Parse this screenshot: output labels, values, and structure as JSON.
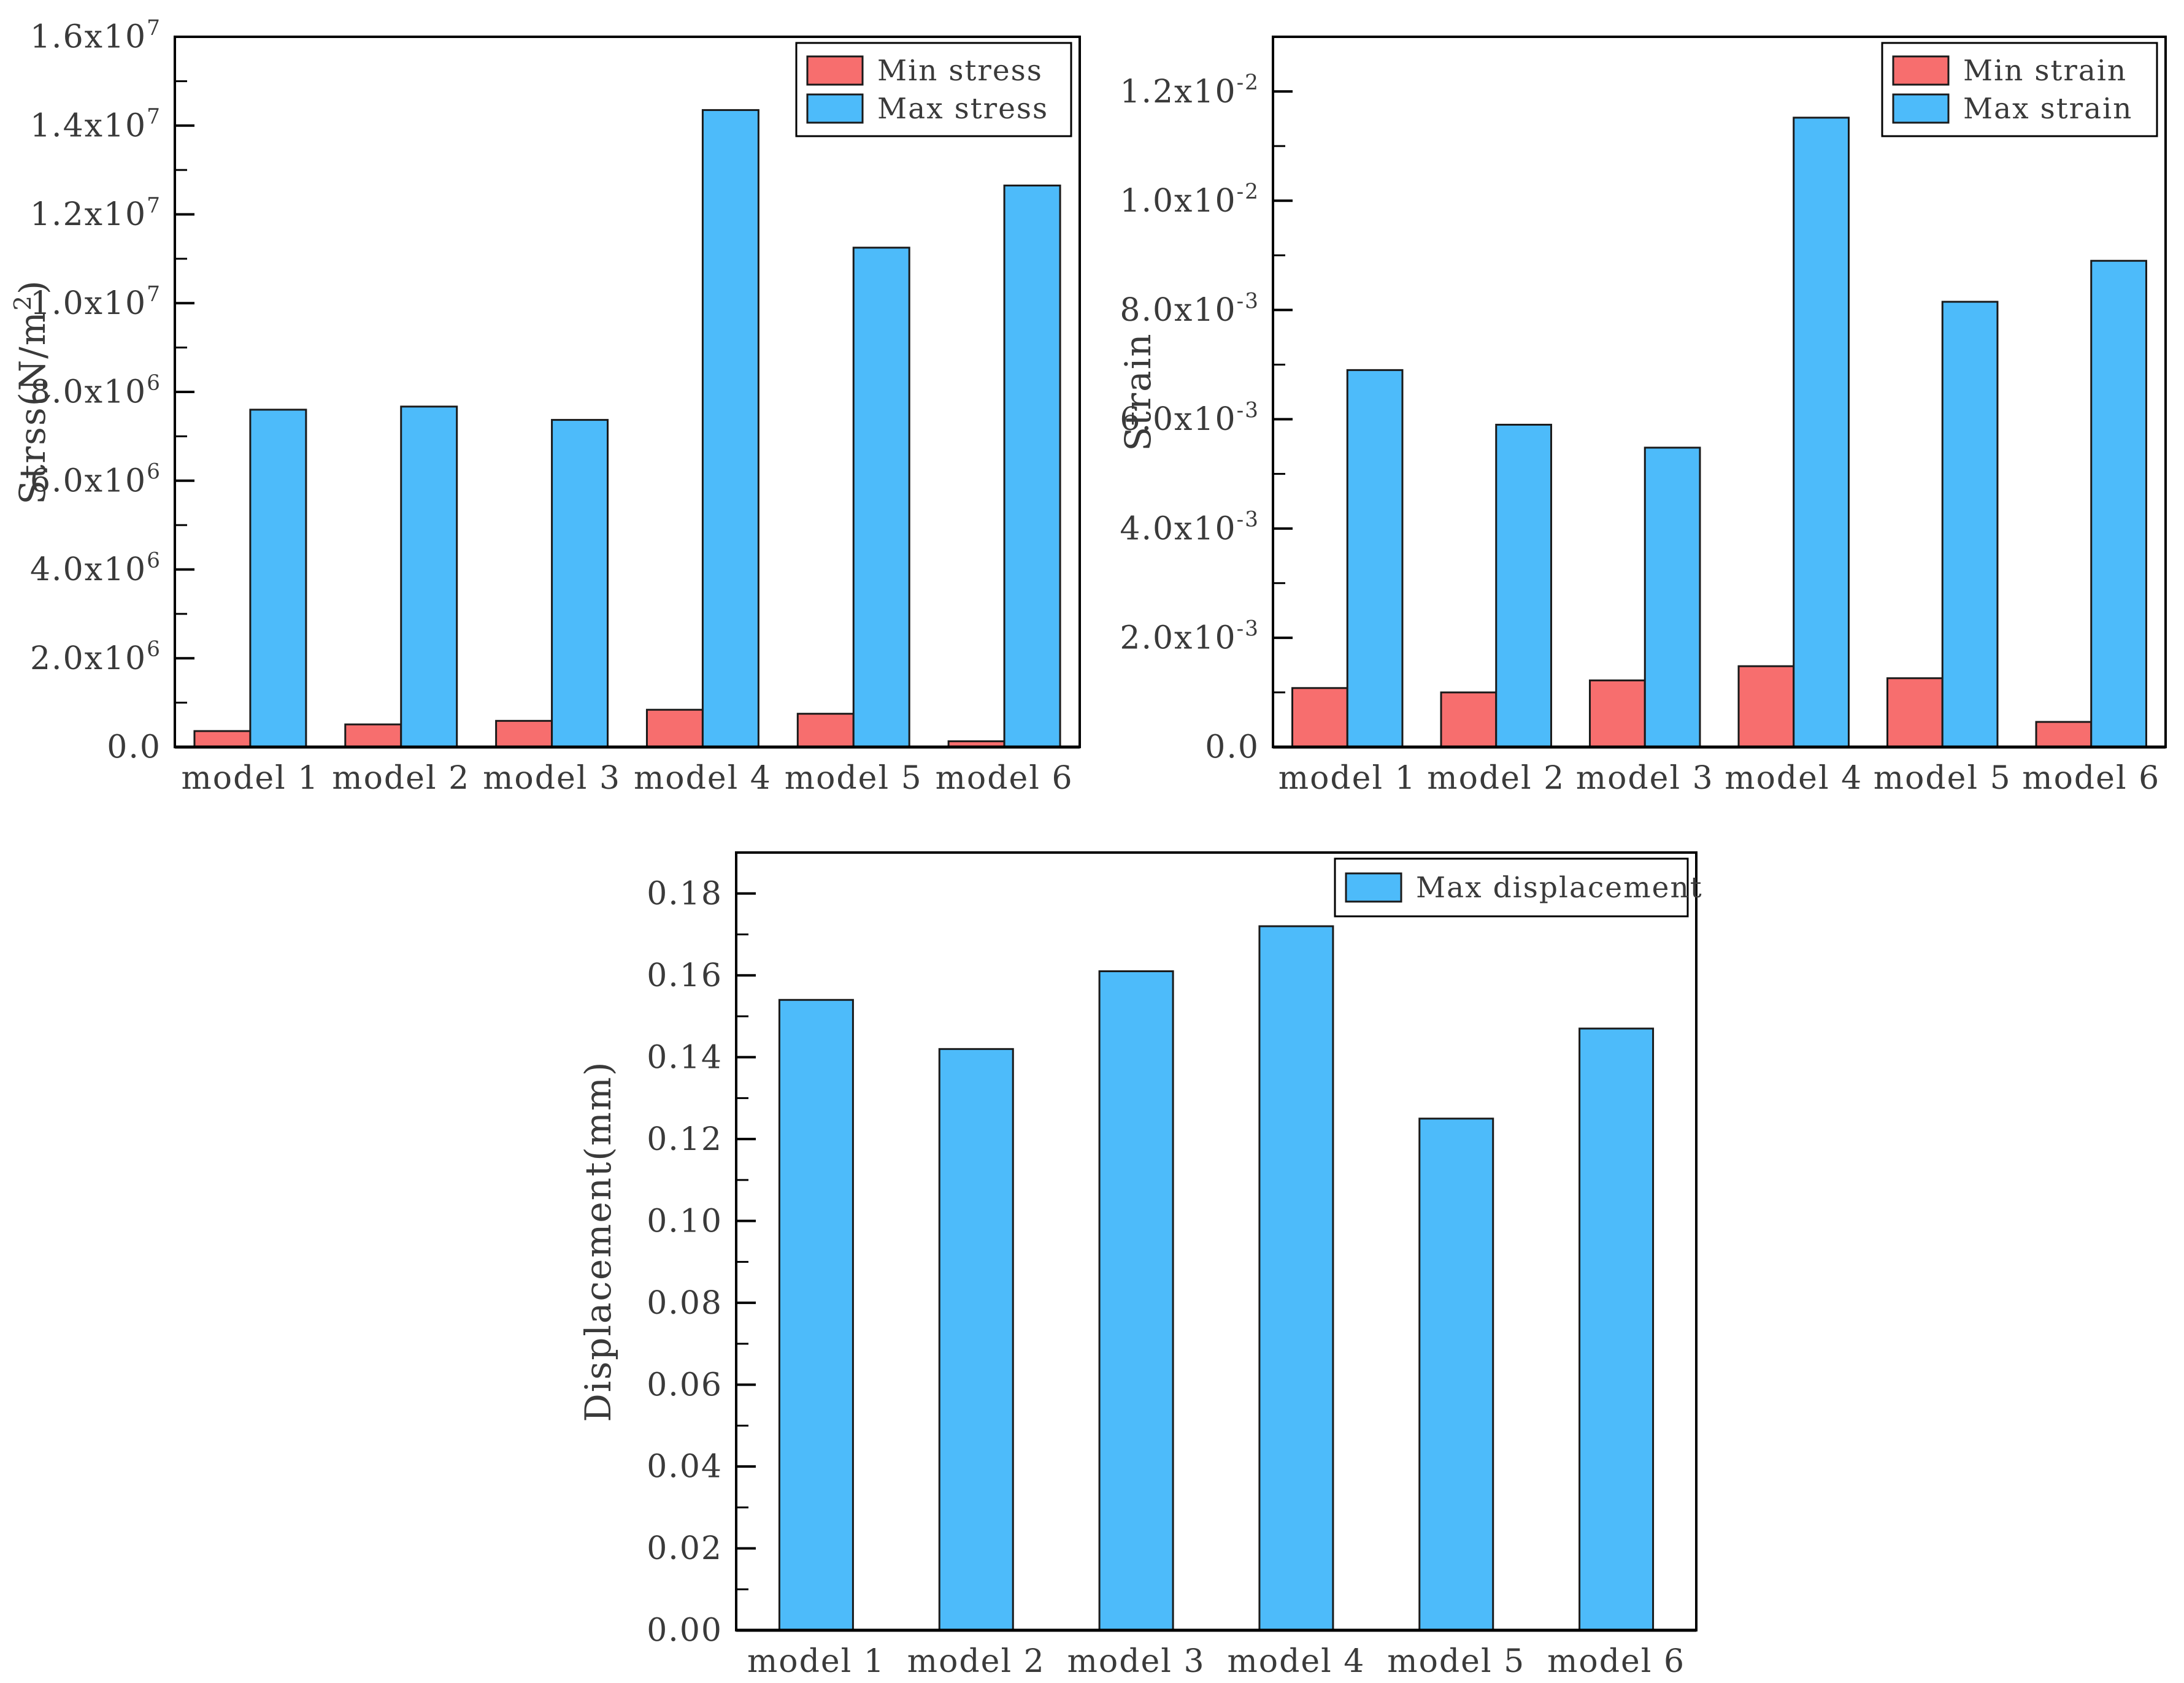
{
  "figure": {
    "background": "#ffffff",
    "text_color": "#3a3a3a",
    "axis_color": "#000000",
    "bar_edge_color": "#1a1a1a"
  },
  "chart_data": [
    {
      "id": "stress",
      "type": "bar",
      "title": "",
      "xlabel": "",
      "ylabel": "Strss(N/m^2)",
      "categories": [
        "model 1",
        "model 2",
        "model 3",
        "model 4",
        "model 5",
        "model 6"
      ],
      "series": [
        {
          "name": "Min stress",
          "color": "#f76e6e",
          "values": [
            360000,
            510000,
            590000,
            840000,
            750000,
            130000
          ]
        },
        {
          "name": "Max stress",
          "color": "#4dbbfa",
          "values": [
            7600000,
            7670000,
            7370000,
            14350000,
            11250000,
            12650000
          ]
        }
      ],
      "ylim": [
        0,
        16000000
      ],
      "yticks": [
        {
          "v": 0,
          "label": "0.0"
        },
        {
          "v": 2000000,
          "label": "2.0x10^6"
        },
        {
          "v": 4000000,
          "label": "4.0x10^6"
        },
        {
          "v": 6000000,
          "label": "6.0x10^6"
        },
        {
          "v": 8000000,
          "label": "8.0x10^6"
        },
        {
          "v": 10000000,
          "label": "1.0x10^7"
        },
        {
          "v": 12000000,
          "label": "1.2x10^7"
        },
        {
          "v": 14000000,
          "label": "1.4x10^7"
        },
        {
          "v": 16000000,
          "label": "1.6x10^7"
        }
      ],
      "minor_step": 1000000,
      "grid": false,
      "legend": {
        "position": "top-right",
        "entries": [
          "Min stress",
          "Max stress"
        ]
      }
    },
    {
      "id": "strain",
      "type": "bar",
      "title": "",
      "xlabel": "",
      "ylabel": "Strain",
      "categories": [
        "model 1",
        "model 2",
        "model 3",
        "model 4",
        "model 5",
        "model 6"
      ],
      "series": [
        {
          "name": "Min strain",
          "color": "#f76e6e",
          "values": [
            0.00108,
            0.001,
            0.00122,
            0.00148,
            0.00126,
            0.00046
          ]
        },
        {
          "name": "Max strain",
          "color": "#4dbbfa",
          "values": [
            0.0069,
            0.0059,
            0.00548,
            0.01152,
            0.00815,
            0.0089
          ]
        }
      ],
      "ylim": [
        0,
        0.013
      ],
      "yticks": [
        {
          "v": 0,
          "label": "0.0"
        },
        {
          "v": 0.002,
          "label": "2.0x10^-3"
        },
        {
          "v": 0.004,
          "label": "4.0x10^-3"
        },
        {
          "v": 0.006,
          "label": "6.0x10^-3"
        },
        {
          "v": 0.008,
          "label": "8.0x10^-3"
        },
        {
          "v": 0.01,
          "label": "1.0x10^-2"
        },
        {
          "v": 0.012,
          "label": "1.2x10^-2"
        }
      ],
      "minor_step": 0.001,
      "grid": false,
      "legend": {
        "position": "top-right",
        "entries": [
          "Min strain",
          "Max strain"
        ]
      }
    },
    {
      "id": "displacement",
      "type": "bar",
      "title": "",
      "xlabel": "",
      "ylabel": "Displacement(mm)",
      "categories": [
        "model 1",
        "model 2",
        "model 3",
        "model 4",
        "model 5",
        "model 6"
      ],
      "series": [
        {
          "name": "Max displacement",
          "color": "#4dbbfa",
          "values": [
            0.154,
            0.142,
            0.161,
            0.172,
            0.125,
            0.147
          ]
        }
      ],
      "ylim": [
        0,
        0.19
      ],
      "yticks": [
        {
          "v": 0.0,
          "label": "0.00"
        },
        {
          "v": 0.02,
          "label": "0.02"
        },
        {
          "v": 0.04,
          "label": "0.04"
        },
        {
          "v": 0.06,
          "label": "0.06"
        },
        {
          "v": 0.08,
          "label": "0.08"
        },
        {
          "v": 0.1,
          "label": "0.10"
        },
        {
          "v": 0.12,
          "label": "0.12"
        },
        {
          "v": 0.14,
          "label": "0.14"
        },
        {
          "v": 0.16,
          "label": "0.16"
        },
        {
          "v": 0.18,
          "label": "0.18"
        }
      ],
      "minor_step": 0.01,
      "grid": false,
      "legend": {
        "position": "top-right",
        "entries": [
          "Max displacement"
        ]
      }
    }
  ]
}
